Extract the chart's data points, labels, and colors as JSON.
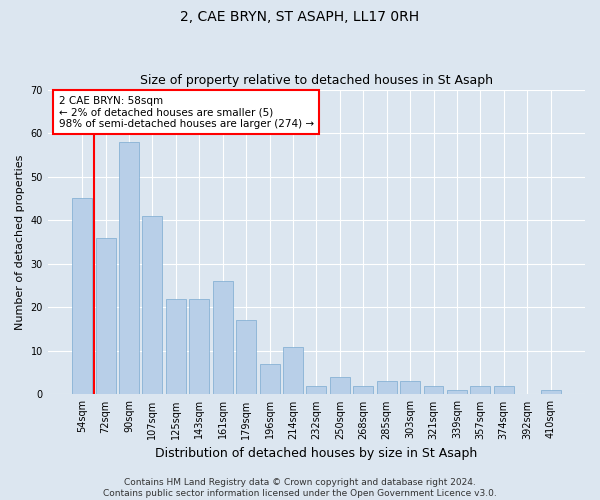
{
  "title": "2, CAE BRYN, ST ASAPH, LL17 0RH",
  "subtitle": "Size of property relative to detached houses in St Asaph",
  "xlabel": "Distribution of detached houses by size in St Asaph",
  "ylabel": "Number of detached properties",
  "categories": [
    "54sqm",
    "72sqm",
    "90sqm",
    "107sqm",
    "125sqm",
    "143sqm",
    "161sqm",
    "179sqm",
    "196sqm",
    "214sqm",
    "232sqm",
    "250sqm",
    "268sqm",
    "285sqm",
    "303sqm",
    "321sqm",
    "339sqm",
    "357sqm",
    "374sqm",
    "392sqm",
    "410sqm"
  ],
  "values": [
    45,
    36,
    58,
    41,
    22,
    22,
    26,
    17,
    7,
    11,
    2,
    4,
    2,
    3,
    3,
    2,
    1,
    2,
    2,
    0,
    1
  ],
  "bar_color": "#b8cfe8",
  "bar_edge_color": "#7aaad0",
  "annotation_text_line1": "2 CAE BRYN: 58sqm",
  "annotation_text_line2": "← 2% of detached houses are smaller (5)",
  "annotation_text_line3": "98% of semi-detached houses are larger (274) →",
  "annotation_fontsize": 7.5,
  "ylim": [
    0,
    70
  ],
  "yticks": [
    0,
    10,
    20,
    30,
    40,
    50,
    60,
    70
  ],
  "footer_text": "Contains HM Land Registry data © Crown copyright and database right 2024.\nContains public sector information licensed under the Open Government Licence v3.0.",
  "background_color": "#dce6f0",
  "plot_background_color": "#dce6f0",
  "grid_color": "#ffffff",
  "title_fontsize": 10,
  "subtitle_fontsize": 9,
  "ylabel_fontsize": 8,
  "xlabel_fontsize": 9,
  "footer_fontsize": 6.5,
  "tick_fontsize": 7,
  "red_line_x": 0.5
}
